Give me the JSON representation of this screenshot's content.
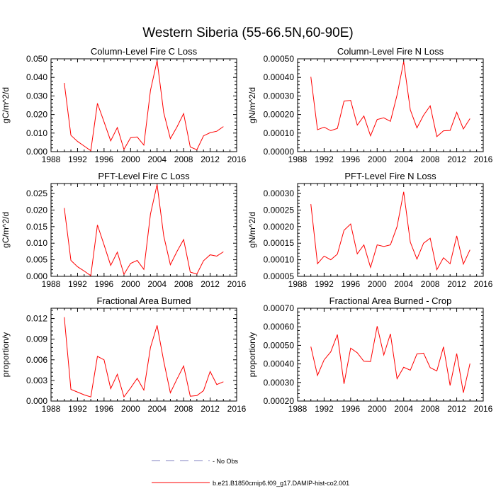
{
  "page_title": "Western Siberia (55-66.5N,60-90E)",
  "chart_data": [
    {
      "type": "line",
      "title": "Column-Level Fire C Loss",
      "ylabel": "gC/m^2/d",
      "xlim": [
        1988,
        2016
      ],
      "ylim": [
        0,
        0.05
      ],
      "xticks": [
        "1988",
        "1992",
        "1996",
        "2000",
        "2004",
        "2008",
        "2012",
        "2016"
      ],
      "yticks": [
        "0.000",
        "0.010",
        "0.020",
        "0.030",
        "0.040",
        "0.050"
      ],
      "series": [
        {
          "name": "b.e21.B1850cmip6.f09_g17.DAMIP-hist-co2.001",
          "color": "#ff0000",
          "x": [
            1990,
            1991,
            1992,
            1993,
            1994,
            1995,
            1996,
            1997,
            1998,
            1999,
            2000,
            2001,
            2002,
            2003,
            2004,
            2005,
            2006,
            2007,
            2008,
            2009,
            2010,
            2011,
            2012,
            2013,
            2014
          ],
          "y": [
            0.037,
            0.0088,
            0.0055,
            0.003,
            0.0005,
            0.026,
            0.016,
            0.0058,
            0.013,
            0.0012,
            0.0075,
            0.0079,
            0.0035,
            0.033,
            0.049,
            0.021,
            0.007,
            0.0133,
            0.0205,
            0.0025,
            0.001,
            0.0085,
            0.0102,
            0.011,
            0.0135
          ]
        }
      ]
    },
    {
      "type": "line",
      "title": "Column-Level Fire N Loss",
      "ylabel": "gN/m^2/d",
      "xlim": [
        1988,
        2016
      ],
      "ylim": [
        0,
        0.0005
      ],
      "xticks": [
        "1988",
        "1992",
        "1996",
        "2000",
        "2004",
        "2008",
        "2012",
        "2016"
      ],
      "yticks": [
        "0.00000",
        "0.00010",
        "0.00020",
        "0.00030",
        "0.00040",
        "0.00050"
      ],
      "series": [
        {
          "name": "b.e21.B1850cmip6.f09_g17.DAMIP-hist-co2.001",
          "color": "#ff0000",
          "x": [
            1990,
            1991,
            1992,
            1993,
            1994,
            1995,
            1996,
            1997,
            1998,
            1999,
            2000,
            2001,
            2002,
            2003,
            2004,
            2005,
            2006,
            2007,
            2008,
            2009,
            2010,
            2011,
            2012,
            2013,
            2014
          ],
          "y": [
            0.000403,
            0.000118,
            0.000132,
            0.000113,
            0.000125,
            0.000272,
            0.000276,
            0.000143,
            0.000192,
            8.5e-05,
            0.000173,
            0.000182,
            0.000163,
            0.000305,
            0.000485,
            0.000225,
            0.000128,
            0.000196,
            0.000247,
            8.1e-05,
            0.000112,
            0.000114,
            0.000212,
            0.000122,
            0.000178
          ]
        }
      ]
    },
    {
      "type": "line",
      "title": "PFT-Level Fire C Loss",
      "ylabel": "gC/m^2/d",
      "xlim": [
        1988,
        2016
      ],
      "ylim": [
        0,
        0.028
      ],
      "xticks": [
        "1988",
        "1992",
        "1996",
        "2000",
        "2004",
        "2008",
        "2012",
        "2016"
      ],
      "yticks": [
        "0.000",
        "0.005",
        "0.010",
        "0.015",
        "0.020",
        "0.025"
      ],
      "series": [
        {
          "name": "b.e21.B1850cmip6.f09_g17.DAMIP-hist-co2.001",
          "color": "#ff0000",
          "x": [
            1990,
            1991,
            1992,
            1993,
            1994,
            1995,
            1996,
            1997,
            1998,
            1999,
            2000,
            2001,
            2002,
            2003,
            2004,
            2005,
            2006,
            2007,
            2008,
            2009,
            2010,
            2011,
            2012,
            2013,
            2014
          ],
          "y": [
            0.0206,
            0.0048,
            0.0029,
            0.0016,
            0.0002,
            0.0155,
            0.0095,
            0.0033,
            0.0073,
            0.0006,
            0.0039,
            0.0048,
            0.0021,
            0.0188,
            0.0277,
            0.0122,
            0.0035,
            0.0075,
            0.0111,
            0.0013,
            0.0007,
            0.0047,
            0.0065,
            0.0061,
            0.0074
          ]
        }
      ]
    },
    {
      "type": "line",
      "title": "PFT-Level Fire N Loss",
      "ylabel": "gN/m^2/d",
      "xlim": [
        1988,
        2016
      ],
      "ylim": [
        5e-05,
        0.00033
      ],
      "xticks": [
        "1988",
        "1992",
        "1996",
        "2000",
        "2004",
        "2008",
        "2012",
        "2016"
      ],
      "yticks": [
        "0.00005",
        "0.00010",
        "0.00015",
        "0.00020",
        "0.00025",
        "0.00030"
      ],
      "series": [
        {
          "name": "b.e21.B1850cmip6.f09_g17.DAMIP-hist-co2.001",
          "color": "#ff0000",
          "x": [
            1990,
            1991,
            1992,
            1993,
            1994,
            1995,
            1996,
            1997,
            1998,
            1999,
            2000,
            2001,
            2002,
            2003,
            2004,
            2005,
            2006,
            2007,
            2008,
            2009,
            2010,
            2011,
            2012,
            2013,
            2014
          ],
          "y": [
            0.000268,
            8.8e-05,
            0.000111,
            0.0001,
            0.000117,
            0.000189,
            0.000208,
            0.000118,
            0.000145,
            7.7e-05,
            0.000145,
            0.00014,
            0.000145,
            0.0002,
            0.000305,
            0.000153,
            0.000102,
            0.00015,
            0.000165,
            7e-05,
            0.000106,
            8.8e-05,
            0.000172,
            8.7e-05,
            0.00013
          ]
        }
      ]
    },
    {
      "type": "line",
      "title": "Fractional Area Burned",
      "ylabel": "proportion/y",
      "xlim": [
        1988,
        2016
      ],
      "ylim": [
        0,
        0.0135
      ],
      "xticks": [
        "1988",
        "1992",
        "1996",
        "2000",
        "2004",
        "2008",
        "2012",
        "2016"
      ],
      "yticks": [
        "0.000",
        "0.003",
        "0.006",
        "0.009",
        "0.012"
      ],
      "series": [
        {
          "name": "b.e21.B1850cmip6.f09_g17.DAMIP-hist-co2.001",
          "color": "#ff0000",
          "x": [
            1990,
            1991,
            1992,
            1993,
            1994,
            1995,
            1996,
            1997,
            1998,
            1999,
            2000,
            2001,
            2002,
            2003,
            2004,
            2005,
            2006,
            2007,
            2008,
            2009,
            2010,
            2011,
            2012,
            2013,
            2014
          ],
          "y": [
            0.0122,
            0.0017,
            0.0013,
            0.0009,
            0.0006,
            0.0065,
            0.006,
            0.0018,
            0.0039,
            0.0006,
            0.0019,
            0.0033,
            0.0016,
            0.0078,
            0.011,
            0.0058,
            0.0012,
            0.0032,
            0.0051,
            0.0007,
            0.0008,
            0.0015,
            0.0043,
            0.0024,
            0.0028
          ]
        }
      ]
    },
    {
      "type": "line",
      "title": "Fractional Area Burned - Crop",
      "ylabel": "proportion/y",
      "xlim": [
        1988,
        2016
      ],
      "ylim": [
        0.0002,
        0.0007
      ],
      "xticks": [
        "1988",
        "1992",
        "1996",
        "2000",
        "2004",
        "2008",
        "2012",
        "2016"
      ],
      "yticks": [
        "0.00020",
        "0.00030",
        "0.00040",
        "0.00050",
        "0.00060",
        "0.00070"
      ],
      "series": [
        {
          "name": "b.e21.B1850cmip6.f09_g17.DAMIP-hist-co2.001",
          "color": "#ff0000",
          "x": [
            1990,
            1991,
            1992,
            1993,
            1994,
            1995,
            1996,
            1997,
            1998,
            1999,
            2000,
            2001,
            2002,
            2003,
            2004,
            2005,
            2006,
            2007,
            2008,
            2009,
            2010,
            2011,
            2012,
            2013,
            2014
          ],
          "y": [
            0.000493,
            0.000338,
            0.000422,
            0.000465,
            0.000558,
            0.000293,
            0.000485,
            0.00046,
            0.000414,
            0.000413,
            0.000603,
            0.000448,
            0.000562,
            0.00032,
            0.000382,
            0.000366,
            0.000454,
            0.000458,
            0.00038,
            0.000362,
            0.000492,
            0.000284,
            0.000456,
            0.000245,
            0.000402
          ]
        }
      ]
    }
  ],
  "legend": {
    "items": [
      {
        "label": "- No Obs",
        "color": "#8080c0",
        "dash": true
      },
      {
        "label": "b.e21.B1850cmip6.f09_g17.DAMIP-hist-co2.001",
        "color": "#ff0000",
        "dash": false
      }
    ]
  }
}
